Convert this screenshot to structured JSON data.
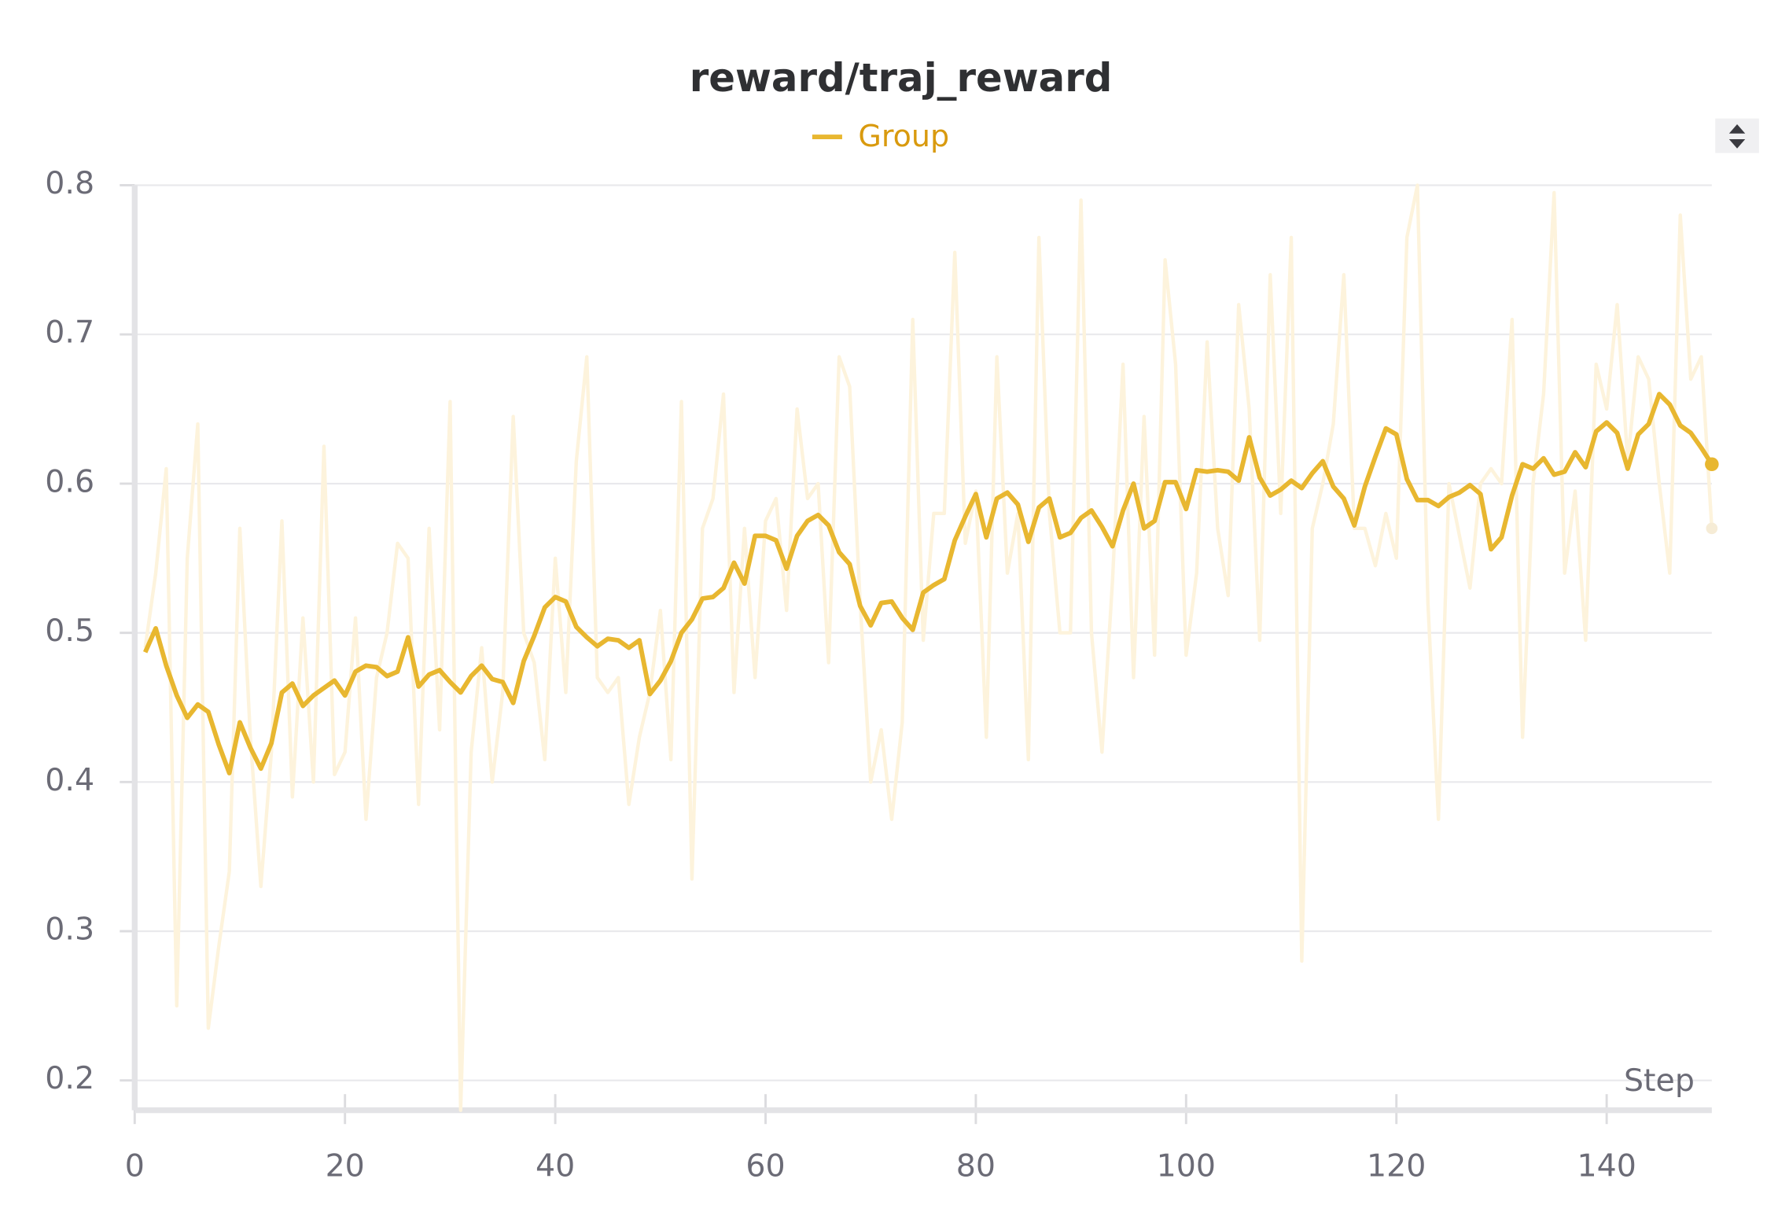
{
  "chart_data": {
    "type": "line",
    "title": "reward/traj_reward",
    "xlabel": "Step",
    "x": [
      1,
      2,
      3,
      4,
      5,
      6,
      7,
      8,
      9,
      10,
      11,
      12,
      13,
      14,
      15,
      16,
      17,
      18,
      19,
      20,
      21,
      22,
      23,
      24,
      25,
      26,
      27,
      28,
      29,
      30,
      31,
      32,
      33,
      34,
      35,
      36,
      37,
      38,
      39,
      40,
      41,
      42,
      43,
      44,
      45,
      46,
      47,
      48,
      49,
      50,
      51,
      52,
      53,
      54,
      55,
      56,
      57,
      58,
      59,
      60,
      61,
      62,
      63,
      64,
      65,
      66,
      67,
      68,
      69,
      70,
      71,
      72,
      73,
      74,
      75,
      76,
      77,
      78,
      79,
      80,
      81,
      82,
      83,
      84,
      85,
      86,
      87,
      88,
      89,
      90,
      91,
      92,
      93,
      94,
      95,
      96,
      97,
      98,
      99,
      100,
      101,
      102,
      103,
      104,
      105,
      106,
      107,
      108,
      109,
      110,
      111,
      112,
      113,
      114,
      115,
      116,
      117,
      118,
      119,
      120,
      121,
      122,
      123,
      124,
      125,
      126,
      127,
      128,
      129,
      130,
      131,
      132,
      133,
      134,
      135,
      136,
      137,
      138,
      139,
      140,
      141,
      142,
      143,
      144,
      145,
      146,
      147,
      148,
      149,
      150
    ],
    "series": [
      {
        "color": "#fdf3dc",
        "values": [
          0.49,
          0.54,
          0.61,
          0.25,
          0.55,
          0.64,
          0.235,
          0.29,
          0.34,
          0.57,
          0.43,
          0.33,
          0.42,
          0.575,
          0.39,
          0.51,
          0.4,
          0.625,
          0.405,
          0.42,
          0.51,
          0.375,
          0.47,
          0.5,
          0.56,
          0.55,
          0.385,
          0.57,
          0.435,
          0.655,
          0.18,
          0.42,
          0.49,
          0.4,
          0.46,
          0.645,
          0.5,
          0.48,
          0.415,
          0.55,
          0.46,
          0.615,
          0.685,
          0.47,
          0.46,
          0.47,
          0.385,
          0.43,
          0.46,
          0.515,
          0.415,
          0.655,
          0.335,
          0.57,
          0.59,
          0.66,
          0.46,
          0.57,
          0.47,
          0.575,
          0.59,
          0.515,
          0.65,
          0.59,
          0.6,
          0.48,
          0.685,
          0.665,
          0.52,
          0.4,
          0.435,
          0.375,
          0.44,
          0.71,
          0.495,
          0.58,
          0.58,
          0.755,
          0.56,
          0.595,
          0.43,
          0.685,
          0.54,
          0.58,
          0.415,
          0.765,
          0.58,
          0.5,
          0.5,
          0.79,
          0.5,
          0.42,
          0.535,
          0.68,
          0.47,
          0.645,
          0.485,
          0.75,
          0.68,
          0.485,
          0.54,
          0.695,
          0.57,
          0.525,
          0.72,
          0.65,
          0.495,
          0.74,
          0.58,
          0.765,
          0.28,
          0.57,
          0.6,
          0.64,
          0.74,
          0.57,
          0.57,
          0.545,
          0.58,
          0.55,
          0.765,
          0.8,
          0.52,
          0.375,
          0.6,
          0.565,
          0.53,
          0.6,
          0.61,
          0.6,
          0.71,
          0.43,
          0.6,
          0.66,
          0.795,
          0.54,
          0.595,
          0.495,
          0.68,
          0.65,
          0.72,
          0.615,
          0.685,
          0.67,
          0.6,
          0.54,
          0.78,
          0.67,
          0.685,
          0.57
        ]
      },
      {
        "name": "Group",
        "color": "#e8b730",
        "values": [
          0.487,
          0.503,
          0.478,
          0.458,
          0.443,
          0.452,
          0.447,
          0.425,
          0.406,
          0.44,
          0.423,
          0.409,
          0.426,
          0.46,
          0.466,
          0.451,
          0.458,
          0.463,
          0.468,
          0.458,
          0.474,
          0.478,
          0.477,
          0.471,
          0.474,
          0.497,
          0.464,
          0.472,
          0.475,
          0.467,
          0.46,
          0.471,
          0.478,
          0.469,
          0.467,
          0.453,
          0.481,
          0.498,
          0.517,
          0.524,
          0.521,
          0.504,
          0.497,
          0.491,
          0.496,
          0.495,
          0.49,
          0.495,
          0.459,
          0.468,
          0.481,
          0.5,
          0.509,
          0.523,
          0.524,
          0.53,
          0.547,
          0.533,
          0.565,
          0.565,
          0.562,
          0.543,
          0.565,
          0.575,
          0.579,
          0.572,
          0.554,
          0.546,
          0.518,
          0.505,
          0.52,
          0.521,
          0.51,
          0.502,
          0.527,
          0.532,
          0.536,
          0.562,
          0.578,
          0.593,
          0.564,
          0.59,
          0.594,
          0.586,
          0.561,
          0.584,
          0.59,
          0.564,
          0.567,
          0.577,
          0.582,
          0.571,
          0.558,
          0.582,
          0.6,
          0.57,
          0.575,
          0.601,
          0.601,
          0.583,
          0.609,
          0.608,
          0.609,
          0.608,
          0.602,
          0.631,
          0.604,
          0.592,
          0.596,
          0.602,
          0.597,
          0.607,
          0.615,
          0.598,
          0.59,
          0.572,
          0.598,
          0.618,
          0.637,
          0.633,
          0.603,
          0.589,
          0.589,
          0.585,
          0.591,
          0.594,
          0.599,
          0.593,
          0.556,
          0.564,
          0.592,
          0.613,
          0.61,
          0.617,
          0.606,
          0.608,
          0.621,
          0.611,
          0.635,
          0.641,
          0.634,
          0.61,
          0.633,
          0.64,
          0.66,
          0.653,
          0.639,
          0.634,
          0.624,
          0.613
        ]
      }
    ],
    "xlim": [
      0,
      150
    ],
    "xticks": [
      0,
      20,
      40,
      60,
      80,
      100,
      120,
      140
    ],
    "ylim": [
      0.18,
      0.8
    ],
    "yticks": [
      0.2,
      0.3,
      0.4,
      0.5,
      0.6,
      0.7,
      0.8
    ],
    "grid": true
  }
}
